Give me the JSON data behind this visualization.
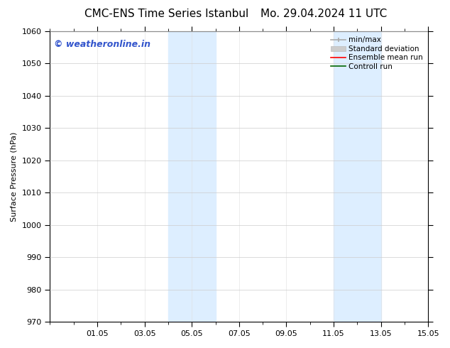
{
  "title_left": "CMC-ENS Time Series Istanbul",
  "title_right": "Mo. 29.04.2024 11 UTC",
  "ylabel": "Surface Pressure (hPa)",
  "ylim": [
    970,
    1060
  ],
  "yticks": [
    970,
    980,
    990,
    1000,
    1010,
    1020,
    1030,
    1040,
    1050,
    1060
  ],
  "xlabel_ticks": [
    "01.05",
    "03.05",
    "05.05",
    "07.05",
    "09.05",
    "11.05",
    "13.05",
    "15.05"
  ],
  "x_tick_positions": [
    2,
    4,
    6,
    8,
    10,
    12,
    14,
    16
  ],
  "xlim": [
    0,
    16
  ],
  "shaded_bands": [
    {
      "x_start": 5.0,
      "x_end": 7.0
    },
    {
      "x_start": 12.0,
      "x_end": 14.0
    }
  ],
  "shade_color": "#ddeeff",
  "background_color": "#ffffff",
  "watermark_text": "© weatheronline.in",
  "watermark_color": "#3355cc",
  "watermark_fontsize": 9,
  "legend_entries": [
    {
      "label": "min/max",
      "color": "#aaaaaa",
      "lw": 1.2
    },
    {
      "label": "Standard deviation",
      "color": "#cccccc",
      "lw": 6
    },
    {
      "label": "Ensemble mean run",
      "color": "#ff0000",
      "lw": 1.2
    },
    {
      "label": "Controll run",
      "color": "#006600",
      "lw": 1.2
    }
  ],
  "title_fontsize": 11,
  "axis_fontsize": 8,
  "tick_fontsize": 8,
  "legend_fontsize": 7.5
}
